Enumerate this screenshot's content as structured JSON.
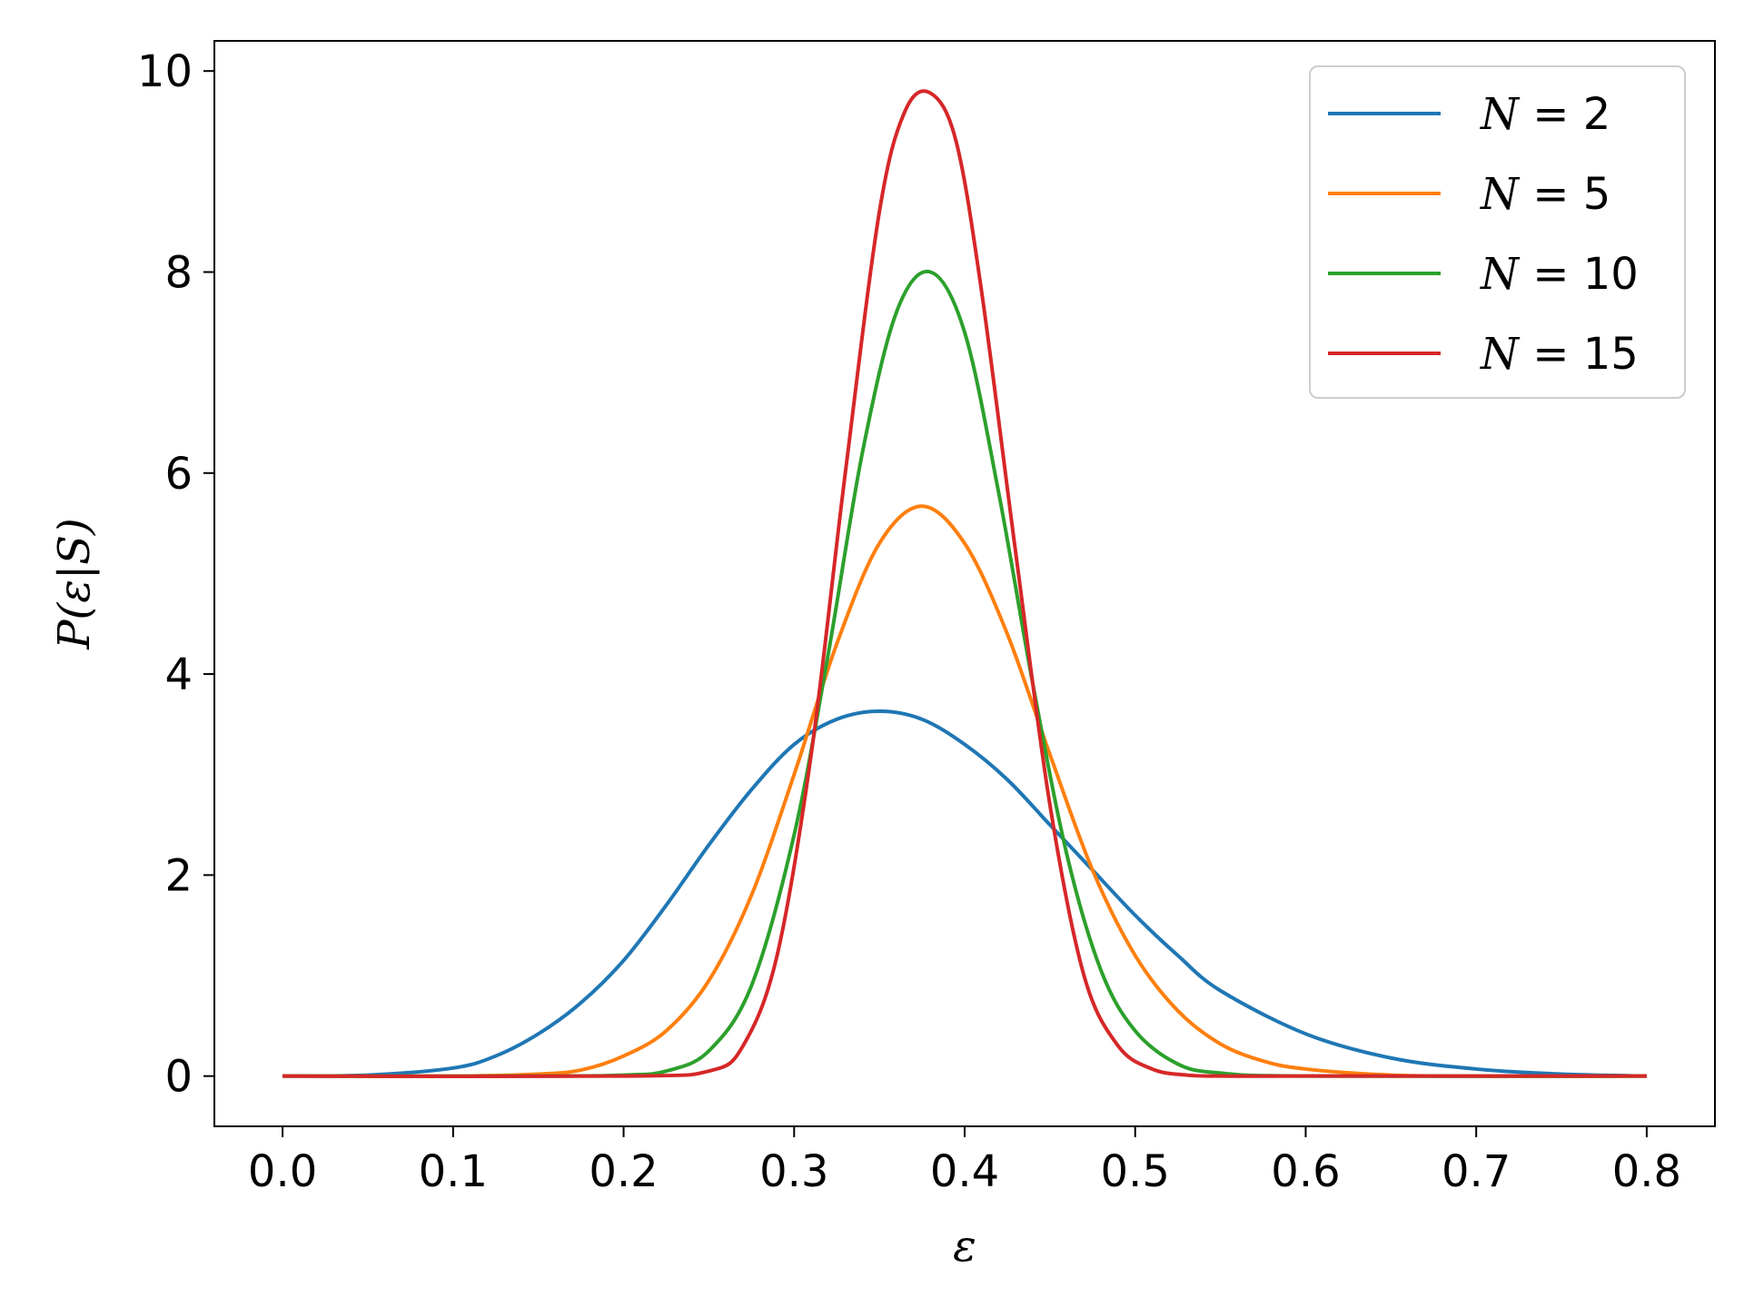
{
  "chart_data": {
    "type": "line",
    "title": "",
    "xlabel": "ε",
    "ylabel": "P(ε|S)",
    "xlim": [
      -0.04,
      0.84
    ],
    "ylim": [
      -0.5,
      10.3
    ],
    "xticks": [
      0.0,
      0.1,
      0.2,
      0.3,
      0.4,
      0.5,
      0.6,
      0.7,
      0.8
    ],
    "xtick_labels": [
      "0.0",
      "0.1",
      "0.2",
      "0.3",
      "0.4",
      "0.5",
      "0.6",
      "0.7",
      "0.8"
    ],
    "yticks": [
      0,
      2,
      4,
      6,
      8,
      10
    ],
    "ytick_labels": [
      "0",
      "2",
      "4",
      "6",
      "8",
      "10"
    ],
    "grid": false,
    "legend_position": "top-right",
    "series": [
      {
        "name": "N = 2",
        "legend_n": "N",
        "legend_value": "= 2",
        "color": "#1f77b4",
        "x": [
          0.0,
          0.05,
          0.1,
          0.125,
          0.15,
          0.175,
          0.2,
          0.225,
          0.25,
          0.275,
          0.3,
          0.325,
          0.35,
          0.375,
          0.4,
          0.425,
          0.45,
          0.475,
          0.5,
          0.525,
          0.55,
          0.6,
          0.65,
          0.7,
          0.75,
          0.8
        ],
        "y": [
          0.0,
          0.01,
          0.08,
          0.2,
          0.42,
          0.73,
          1.15,
          1.7,
          2.3,
          2.85,
          3.3,
          3.55,
          3.63,
          3.55,
          3.3,
          2.95,
          2.5,
          2.05,
          1.6,
          1.2,
          0.85,
          0.42,
          0.18,
          0.07,
          0.02,
          0.0
        ]
      },
      {
        "name": "N = 5",
        "legend_n": "N",
        "legend_value": "= 5",
        "color": "#ff7f0e",
        "x": [
          0.0,
          0.1,
          0.15,
          0.175,
          0.2,
          0.225,
          0.25,
          0.275,
          0.3,
          0.325,
          0.35,
          0.375,
          0.4,
          0.425,
          0.45,
          0.475,
          0.5,
          0.525,
          0.55,
          0.575,
          0.6,
          0.65,
          0.7,
          0.8
        ],
        "y": [
          0.0,
          0.0,
          0.02,
          0.06,
          0.2,
          0.45,
          0.95,
          1.8,
          3.0,
          4.3,
          5.3,
          5.67,
          5.3,
          4.4,
          3.2,
          2.05,
          1.2,
          0.65,
          0.32,
          0.15,
          0.07,
          0.01,
          0.0,
          0.0
        ],
        "_note": ""
      },
      {
        "name": "N = 10",
        "legend_n": "N",
        "legend_value": "= 10",
        "color": "#2ca02c",
        "x": [
          0.0,
          0.15,
          0.2,
          0.225,
          0.25,
          0.275,
          0.3,
          0.32,
          0.34,
          0.36,
          0.38,
          0.4,
          0.42,
          0.44,
          0.46,
          0.48,
          0.5,
          0.525,
          0.55,
          0.6,
          0.8
        ],
        "y": [
          0.0,
          0.0,
          0.01,
          0.05,
          0.25,
          0.9,
          2.4,
          4.2,
          6.2,
          7.6,
          8.0,
          7.4,
          5.8,
          3.9,
          2.2,
          1.05,
          0.45,
          0.12,
          0.03,
          0.0,
          0.0
        ]
      },
      {
        "name": "N = 15",
        "legend_n": "N",
        "legend_value": "= 15",
        "color": "#d62728",
        "x": [
          0.0,
          0.2,
          0.25,
          0.27,
          0.29,
          0.31,
          0.33,
          0.35,
          0.365,
          0.38,
          0.395,
          0.41,
          0.43,
          0.45,
          0.47,
          0.49,
          0.51,
          0.53,
          0.55,
          0.6,
          0.8
        ],
        "y": [
          0.0,
          0.0,
          0.05,
          0.3,
          1.2,
          3.2,
          6.0,
          8.6,
          9.6,
          9.78,
          9.3,
          7.8,
          5.2,
          2.7,
          1.0,
          0.3,
          0.07,
          0.01,
          0.0,
          0.0,
          0.0
        ]
      }
    ]
  }
}
